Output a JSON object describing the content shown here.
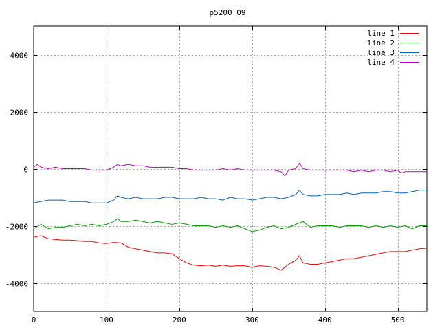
{
  "chart_data": {
    "type": "line",
    "title": "p5200_09",
    "xlabel": "",
    "ylabel": "",
    "xlim": [
      0,
      540
    ],
    "ylim": [
      -5000,
      5000
    ],
    "x_ticks": [
      0,
      100,
      200,
      300,
      400,
      500
    ],
    "y_ticks": [
      -4000,
      -2000,
      0,
      2000,
      4000
    ],
    "grid": true,
    "legend_position": "top-right",
    "series": [
      {
        "name": "line 1",
        "color": "#ff0000",
        "x": [
          0,
          10,
          20,
          30,
          40,
          50,
          60,
          70,
          80,
          90,
          100,
          110,
          120,
          130,
          140,
          150,
          160,
          170,
          180,
          190,
          200,
          210,
          220,
          230,
          240,
          250,
          260,
          270,
          280,
          290,
          300,
          310,
          320,
          330,
          340,
          345,
          350,
          360,
          365,
          370,
          380,
          390,
          400,
          410,
          420,
          430,
          440,
          450,
          460,
          470,
          480,
          490,
          500,
          510,
          520,
          530,
          540
        ],
        "y": [
          -2400,
          -2350,
          -2450,
          -2480,
          -2500,
          -2500,
          -2520,
          -2550,
          -2550,
          -2600,
          -2620,
          -2580,
          -2600,
          -2750,
          -2800,
          -2850,
          -2900,
          -2950,
          -2950,
          -2980,
          -3150,
          -3300,
          -3380,
          -3400,
          -3380,
          -3420,
          -3380,
          -3420,
          -3400,
          -3400,
          -3450,
          -3400,
          -3420,
          -3450,
          -3550,
          -3450,
          -3350,
          -3200,
          -3050,
          -3300,
          -3350,
          -3350,
          -3300,
          -3250,
          -3200,
          -3150,
          -3150,
          -3100,
          -3050,
          -3000,
          -2950,
          -2900,
          -2900,
          -2900,
          -2850,
          -2800,
          -2780
        ]
      },
      {
        "name": "line 2",
        "color": "#00a000",
        "x": [
          0,
          10,
          20,
          30,
          40,
          50,
          60,
          70,
          80,
          90,
          100,
          110,
          115,
          120,
          130,
          140,
          150,
          160,
          170,
          180,
          190,
          200,
          210,
          220,
          230,
          240,
          250,
          260,
          270,
          280,
          290,
          300,
          310,
          320,
          330,
          340,
          350,
          360,
          370,
          380,
          390,
          400,
          410,
          420,
          430,
          440,
          450,
          460,
          470,
          480,
          490,
          500,
          510,
          520,
          530,
          540
        ],
        "y": [
          -2100,
          -1950,
          -2100,
          -2050,
          -2050,
          -2000,
          -1950,
          -2000,
          -1950,
          -2000,
          -1950,
          -1850,
          -1750,
          -1850,
          -1850,
          -1800,
          -1850,
          -1900,
          -1850,
          -1900,
          -1950,
          -1900,
          -1950,
          -2000,
          -2000,
          -2000,
          -2050,
          -2000,
          -2050,
          -2000,
          -2100,
          -2200,
          -2150,
          -2050,
          -2000,
          -2100,
          -2050,
          -1950,
          -1850,
          -2050,
          -2000,
          -2000,
          -2000,
          -2050,
          -2000,
          -2000,
          -2000,
          -2050,
          -2000,
          -2050,
          -2000,
          -2050,
          -2000,
          -2100,
          -2000,
          -2000
        ]
      },
      {
        "name": "line 3",
        "color": "#0060c0",
        "x": [
          0,
          10,
          20,
          30,
          40,
          50,
          60,
          70,
          80,
          90,
          100,
          110,
          115,
          120,
          130,
          140,
          150,
          160,
          170,
          180,
          190,
          200,
          210,
          220,
          230,
          240,
          250,
          260,
          270,
          280,
          290,
          300,
          310,
          320,
          330,
          340,
          350,
          360,
          365,
          370,
          380,
          390,
          400,
          410,
          420,
          430,
          440,
          450,
          460,
          470,
          480,
          490,
          500,
          510,
          520,
          530,
          540
        ],
        "y": [
          -1200,
          -1150,
          -1100,
          -1100,
          -1100,
          -1150,
          -1150,
          -1150,
          -1200,
          -1200,
          -1200,
          -1100,
          -950,
          -1000,
          -1050,
          -1000,
          -1050,
          -1050,
          -1050,
          -1000,
          -1000,
          -1050,
          -1050,
          -1050,
          -1000,
          -1050,
          -1050,
          -1100,
          -1000,
          -1050,
          -1050,
          -1100,
          -1050,
          -1000,
          -1000,
          -1050,
          -1000,
          -900,
          -750,
          -900,
          -950,
          -950,
          -900,
          -900,
          -900,
          -850,
          -900,
          -850,
          -850,
          -850,
          -800,
          -800,
          -850,
          -850,
          -800,
          -750,
          -750
        ]
      },
      {
        "name": "line 4",
        "color": "#c000c0",
        "x": [
          0,
          5,
          10,
          20,
          30,
          40,
          50,
          60,
          70,
          80,
          90,
          100,
          110,
          115,
          120,
          130,
          140,
          150,
          160,
          170,
          180,
          190,
          200,
          210,
          220,
          230,
          240,
          250,
          260,
          270,
          280,
          290,
          300,
          310,
          320,
          330,
          340,
          345,
          350,
          360,
          365,
          370,
          380,
          390,
          400,
          410,
          420,
          430,
          440,
          450,
          460,
          470,
          480,
          490,
          500,
          505,
          510,
          520,
          530,
          540
        ],
        "y": [
          50,
          150,
          50,
          0,
          50,
          0,
          0,
          0,
          0,
          -50,
          -50,
          -50,
          50,
          150,
          100,
          150,
          100,
          100,
          50,
          50,
          50,
          50,
          0,
          0,
          -50,
          -50,
          -50,
          -50,
          0,
          -50,
          0,
          -50,
          -50,
          -50,
          -50,
          -50,
          -100,
          -250,
          -50,
          0,
          200,
          0,
          -50,
          -50,
          -50,
          -50,
          -50,
          -50,
          -100,
          -50,
          -100,
          -50,
          -50,
          -100,
          -50,
          -150,
          -100,
          -100,
          -100,
          -100
        ]
      }
    ]
  }
}
